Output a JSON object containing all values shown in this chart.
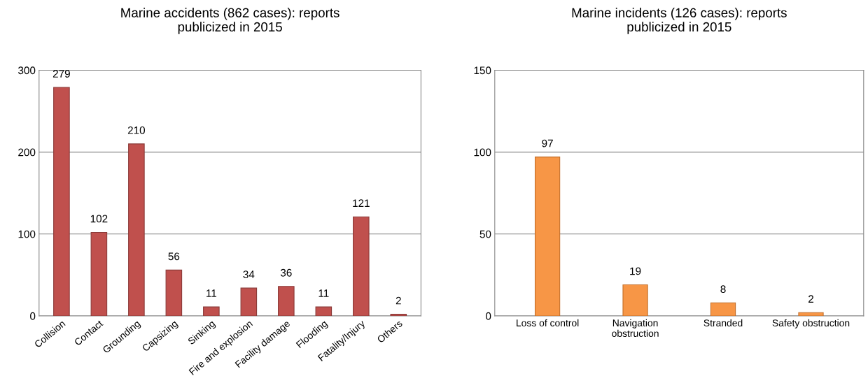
{
  "chart_data": [
    {
      "type": "bar",
      "title": "Marine accidents (862 cases): reports\npublicized in 2015",
      "categories": [
        "Collision",
        "Contact",
        "Grounding",
        "Capsizing",
        "Sinking",
        "Fire and explosion",
        "Facility damage",
        "Flooding",
        "Fatality/Injury",
        "Others"
      ],
      "values": [
        279,
        102,
        210,
        56,
        11,
        34,
        36,
        11,
        121,
        2
      ],
      "color": "#c0504d",
      "ylim": [
        0,
        300
      ],
      "yticks": [
        0,
        100,
        200,
        300
      ],
      "grid": "y",
      "data_labels": true
    },
    {
      "type": "bar",
      "title": "Marine incidents (126 cases): reports\npublicized in 2015",
      "categories": [
        "Loss of control",
        "Navigation\nobstruction",
        "Stranded",
        "Safety obstruction"
      ],
      "values": [
        97,
        19,
        8,
        2
      ],
      "color": "#f79646",
      "ylim": [
        0,
        150
      ],
      "yticks": [
        0,
        50,
        100,
        150
      ],
      "grid": "y",
      "data_labels": true
    }
  ]
}
